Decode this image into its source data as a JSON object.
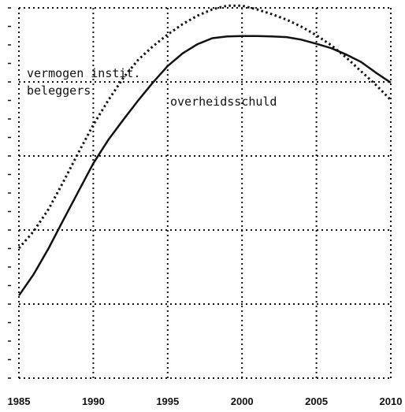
{
  "chart_data": {
    "type": "line",
    "title": "",
    "xlabel": "",
    "ylabel": "",
    "xlim": [
      1985,
      2010
    ],
    "x_ticks": [
      "1985",
      "1990",
      "1995",
      "2000",
      "2005",
      "2010"
    ],
    "ylim": [
      0,
      100
    ],
    "grid": true,
    "grid_style": "dotted",
    "y_tick_labels_shown": false,
    "series": [
      {
        "name": "vermogen instit. beleggers",
        "label_lines": [
          "vermogen instit.",
          "beleggers"
        ],
        "style": "dotted",
        "color": "#111111",
        "x": [
          1985,
          1986,
          1987,
          1988,
          1989,
          1990,
          1991,
          1992,
          1993,
          1994,
          1995,
          1996,
          1997,
          1998,
          1999,
          2000,
          2001,
          2002,
          2003,
          2004,
          2005,
          2006,
          2007,
          2008,
          2009,
          2010
        ],
        "y": [
          35.1,
          39.7,
          45.7,
          53.1,
          60.9,
          68.4,
          75.0,
          81.0,
          85.9,
          89.6,
          92.8,
          95.6,
          97.9,
          99.6,
          100.6,
          100.6,
          99.6,
          98.3,
          96.8,
          94.9,
          92.6,
          89.9,
          86.6,
          82.9,
          79.2,
          75.1
        ]
      },
      {
        "name": "overheidsschuld",
        "label_lines": [
          "overheidsschuld"
        ],
        "style": "solid",
        "color": "#111111",
        "x": [
          1985,
          1986,
          1987,
          1988,
          1989,
          1990,
          1991,
          1992,
          1993,
          1994,
          1995,
          1996,
          1997,
          1998,
          1999,
          2000,
          2001,
          2002,
          2003,
          2004,
          2005,
          2006,
          2007,
          2008,
          2009,
          2010
        ],
        "y": [
          22.3,
          28.1,
          35.1,
          42.8,
          50.4,
          58.0,
          64.3,
          69.7,
          74.9,
          79.8,
          84.3,
          87.7,
          90.2,
          91.8,
          92.3,
          92.4,
          92.4,
          92.3,
          92.1,
          91.4,
          90.3,
          89.1,
          87.4,
          85.4,
          82.5,
          79.8
        ]
      }
    ]
  }
}
